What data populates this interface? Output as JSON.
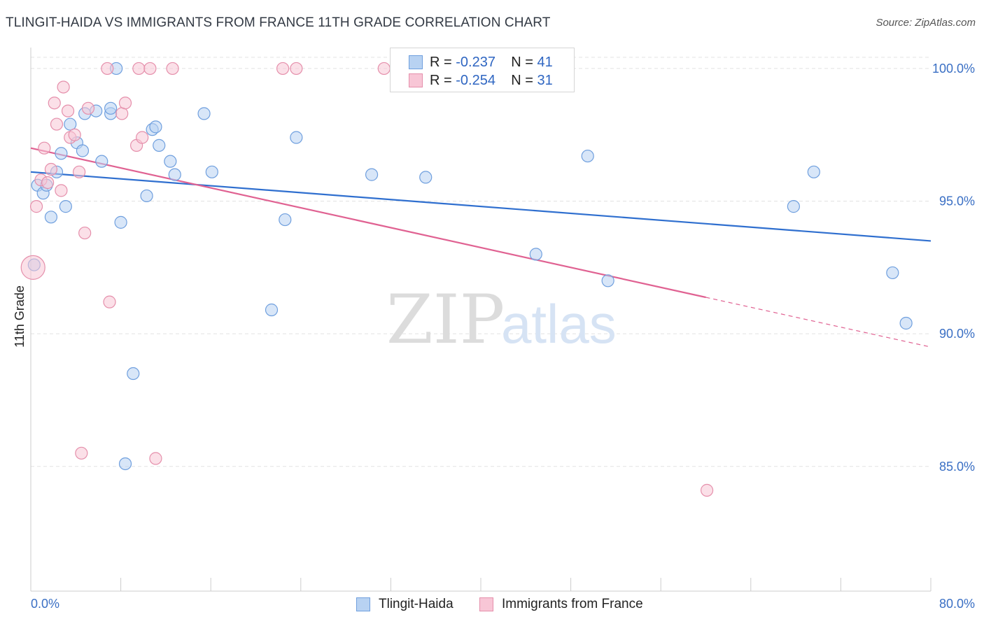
{
  "title": "TLINGIT-HAIDA VS IMMIGRANTS FROM FRANCE 11TH GRADE CORRELATION CHART",
  "source": "Source: ZipAtlas.com",
  "watermark": {
    "zip": "ZIP",
    "atlas": "atlas"
  },
  "legend": {
    "rows": [
      {
        "r_label": "R =",
        "r_value": "-0.237",
        "n_label": "N =",
        "n_value": "41"
      },
      {
        "r_label": "R =",
        "r_value": "-0.254",
        "n_label": "N =",
        "n_value": "31"
      }
    ]
  },
  "bottom_legend": {
    "series1": "Tlingit-Haida",
    "series2": "Immigrants from France"
  },
  "colors": {
    "series1_fill": "#b8d2f2",
    "series1_stroke": "#6f9fde",
    "series1_line": "#2f6fcf",
    "series2_fill": "#f8c6d6",
    "series2_stroke": "#e58fab",
    "series2_line": "#e06292",
    "grid": "#e2e2e2",
    "tick_text": "#3a6fc4"
  },
  "chart_data": {
    "type": "scatter",
    "ylabel": "11th Grade",
    "xlabel": "",
    "xlim": [
      0,
      80
    ],
    "ylim": [
      80.3,
      101.0
    ],
    "x_tick_labels": [
      {
        "value": 0,
        "label": "0.0%"
      },
      {
        "value": 80,
        "label": "80.0%"
      }
    ],
    "y_tick_labels": [
      {
        "value": 100,
        "label": "100.0%"
      },
      {
        "value": 95,
        "label": "95.0%"
      },
      {
        "value": 90,
        "label": "90.0%"
      },
      {
        "value": 85,
        "label": "85.0%"
      }
    ],
    "grid": true,
    "series": [
      {
        "name": "Tlingit-Haida",
        "trend": {
          "x": [
            0,
            80
          ],
          "y": [
            96.1,
            93.5
          ]
        },
        "points": [
          [
            0.3,
            92.6
          ],
          [
            0.6,
            95.6
          ],
          [
            1.1,
            95.3
          ],
          [
            1.4,
            95.6
          ],
          [
            1.8,
            94.4
          ],
          [
            2.3,
            96.1
          ],
          [
            2.7,
            96.8
          ],
          [
            3.1,
            94.8
          ],
          [
            3.5,
            97.9
          ],
          [
            4.1,
            97.2
          ],
          [
            4.6,
            96.9
          ],
          [
            4.8,
            98.3
          ],
          [
            5.8,
            98.4
          ],
          [
            6.3,
            96.5
          ],
          [
            7.1,
            98.3
          ],
          [
            7.1,
            98.5
          ],
          [
            7.6,
            100.0
          ],
          [
            8.0,
            94.2
          ],
          [
            8.4,
            85.1
          ],
          [
            9.1,
            88.5
          ],
          [
            10.3,
            95.2
          ],
          [
            10.8,
            97.7
          ],
          [
            11.1,
            97.8
          ],
          [
            11.4,
            97.1
          ],
          [
            12.4,
            96.5
          ],
          [
            12.8,
            96.0
          ],
          [
            15.4,
            98.3
          ],
          [
            16.1,
            96.1
          ],
          [
            21.4,
            90.9
          ],
          [
            22.6,
            94.3
          ],
          [
            23.6,
            97.4
          ],
          [
            30.3,
            96.0
          ],
          [
            35.1,
            95.9
          ],
          [
            36.1,
            100.0
          ],
          [
            44.9,
            93.0
          ],
          [
            49.5,
            96.7
          ],
          [
            51.3,
            92.0
          ],
          [
            67.8,
            94.8
          ],
          [
            69.6,
            96.1
          ],
          [
            76.6,
            92.3
          ],
          [
            77.8,
            90.4
          ]
        ]
      },
      {
        "name": "Immigrants from France",
        "trend": {
          "x": [
            0,
            80
          ],
          "y": [
            97.0,
            89.5
          ],
          "solid_until_x": 60
        },
        "points": [
          [
            0.2,
            92.5
          ],
          [
            0.5,
            94.8
          ],
          [
            0.9,
            95.8
          ],
          [
            1.2,
            97.0
          ],
          [
            1.5,
            95.7
          ],
          [
            1.8,
            96.2
          ],
          [
            2.1,
            98.7
          ],
          [
            2.3,
            97.9
          ],
          [
            2.7,
            95.4
          ],
          [
            2.9,
            99.3
          ],
          [
            3.3,
            98.4
          ],
          [
            3.5,
            97.4
          ],
          [
            3.9,
            97.5
          ],
          [
            4.3,
            96.1
          ],
          [
            4.5,
            85.5
          ],
          [
            4.8,
            93.8
          ],
          [
            5.1,
            98.5
          ],
          [
            6.8,
            100.0
          ],
          [
            7.0,
            91.2
          ],
          [
            8.1,
            98.3
          ],
          [
            8.4,
            98.7
          ],
          [
            9.4,
            97.1
          ],
          [
            9.6,
            100.0
          ],
          [
            9.9,
            97.4
          ],
          [
            10.6,
            100.0
          ],
          [
            11.1,
            85.3
          ],
          [
            12.6,
            100.0
          ],
          [
            22.4,
            100.0
          ],
          [
            23.6,
            100.0
          ],
          [
            31.4,
            100.0
          ],
          [
            60.1,
            84.1
          ]
        ]
      }
    ]
  }
}
